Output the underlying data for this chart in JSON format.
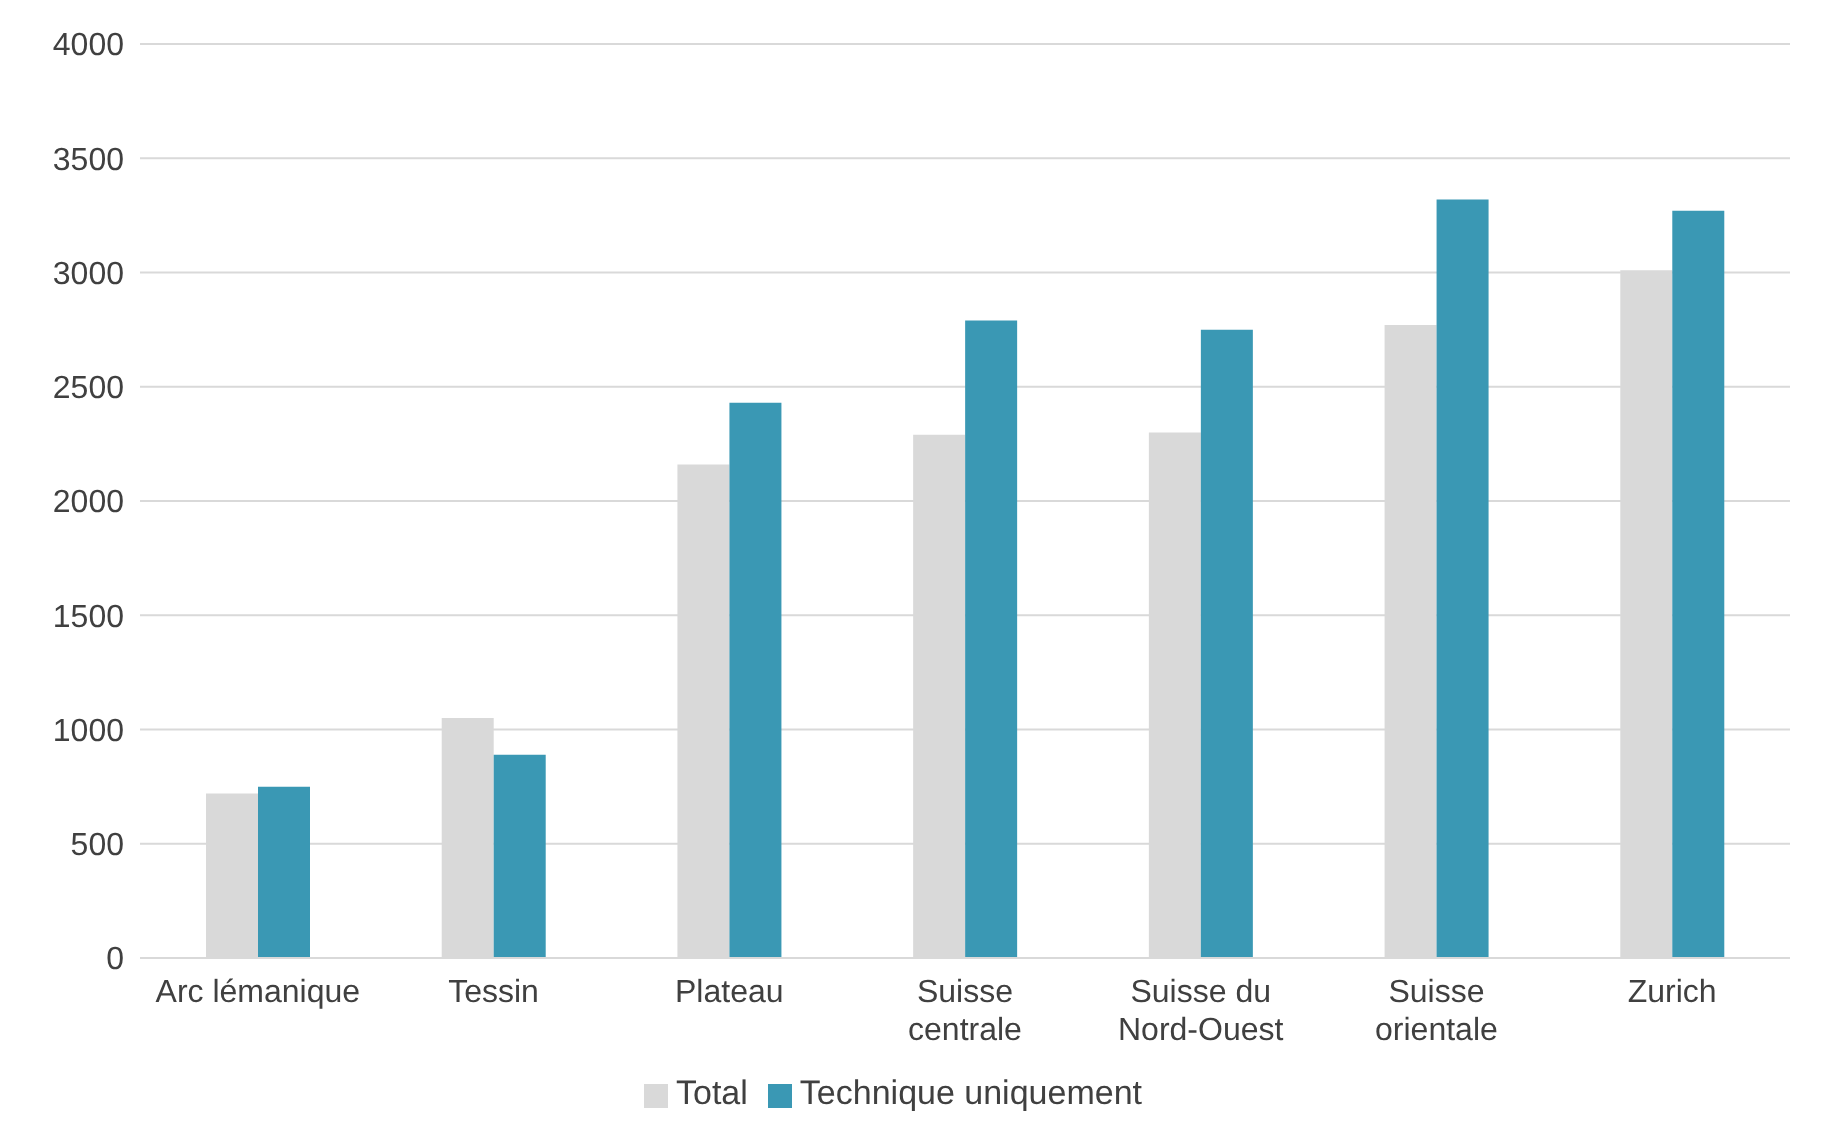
{
  "chart_data": {
    "type": "bar",
    "categories": [
      "Arc lémanique",
      "Tessin",
      "Plateau",
      "Suisse centrale",
      "Suisse du Nord-Ouest",
      "Suisse orientale",
      "Zurich"
    ],
    "series": [
      {
        "name": "Total",
        "color": "#d9d9d9",
        "values": [
          720,
          1050,
          2160,
          2290,
          2300,
          2770,
          3010
        ]
      },
      {
        "name": "Technique uniquement",
        "color": "#3a98b4",
        "values": [
          750,
          890,
          2430,
          2790,
          2750,
          3320,
          3270
        ]
      }
    ],
    "ylim": [
      0,
      4000
    ],
    "yticks": [
      0,
      500,
      1000,
      1500,
      2000,
      2500,
      3000,
      3500,
      4000
    ],
    "grid": "y",
    "legend": "bottom"
  }
}
